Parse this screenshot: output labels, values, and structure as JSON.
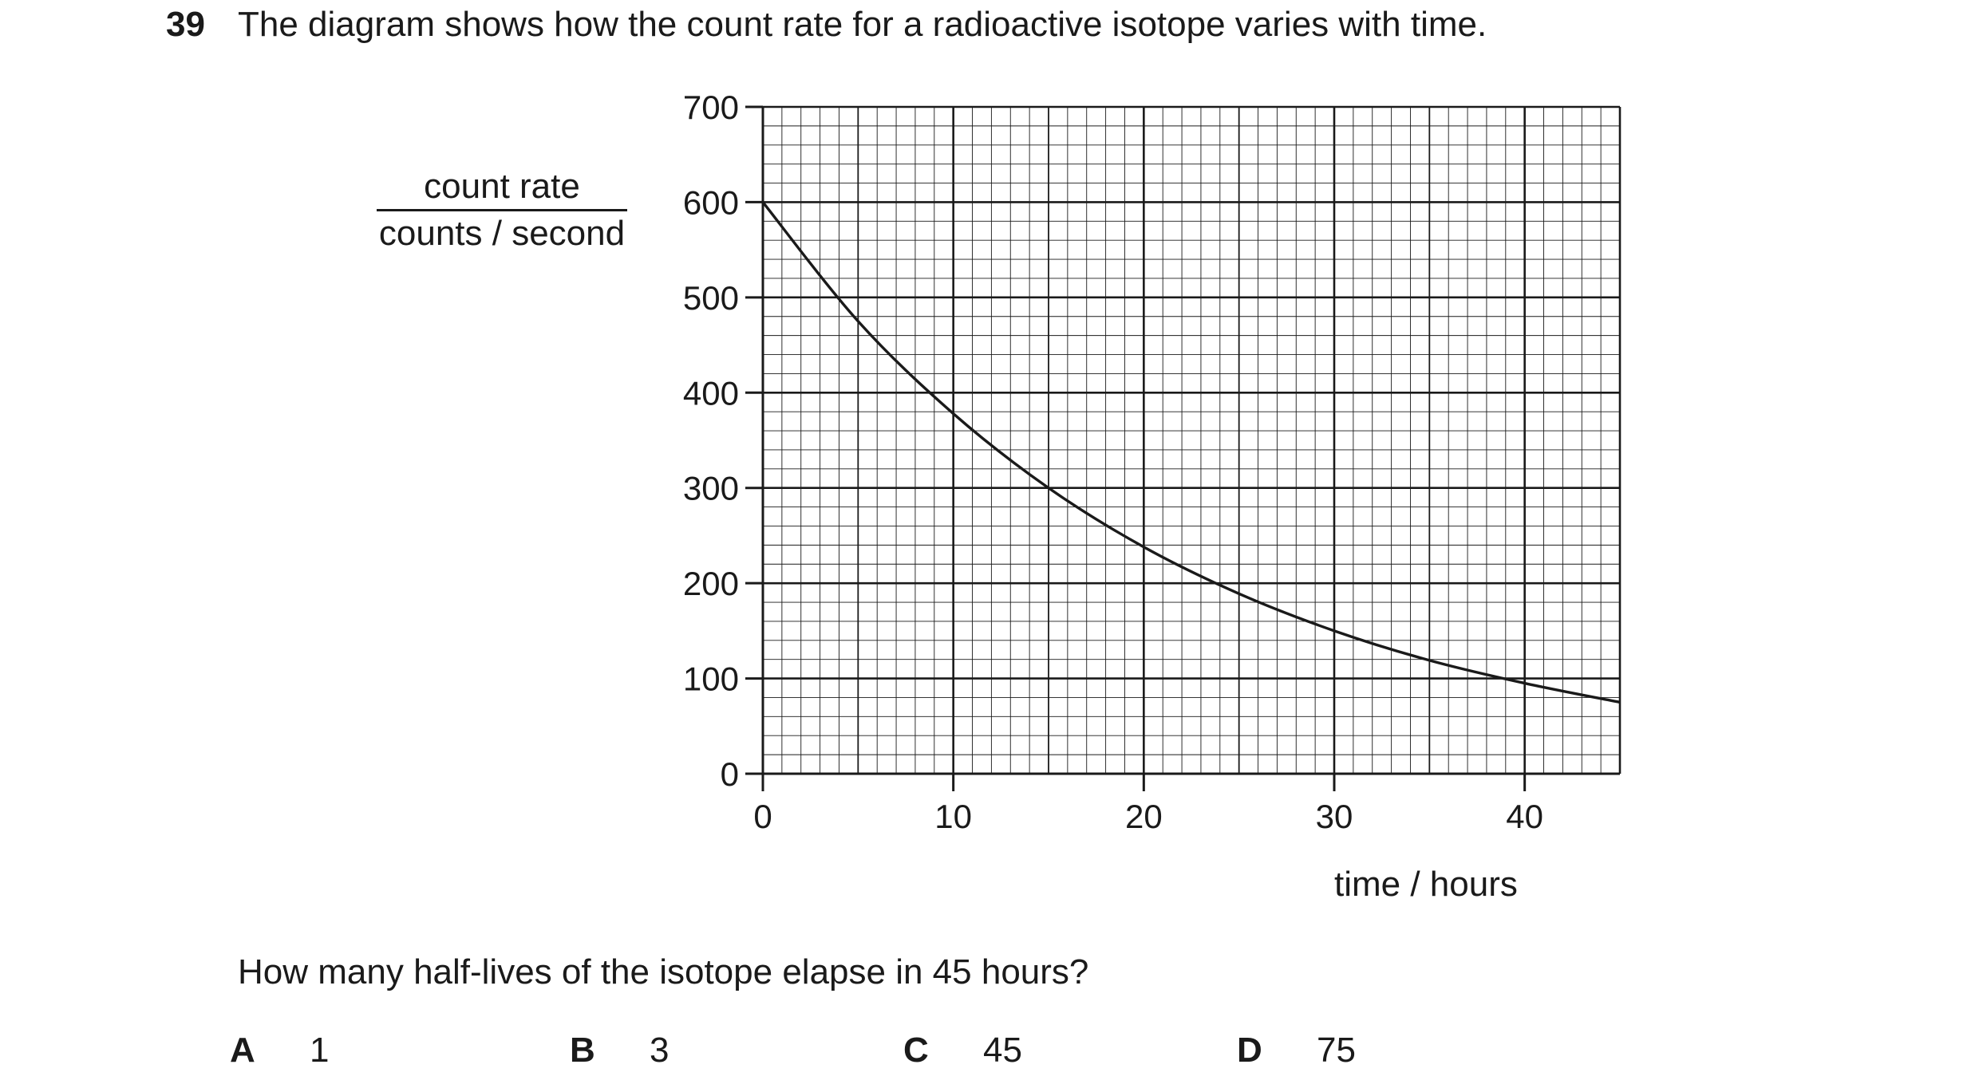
{
  "question": {
    "number": "39",
    "text": "The diagram shows how the count rate for a radioactive isotope varies with time.",
    "prompt": "How many half-lives of the isotope elapse in 45 hours?",
    "options": [
      {
        "letter": "A",
        "value": "1"
      },
      {
        "letter": "B",
        "value": "3"
      },
      {
        "letter": "C",
        "value": "45"
      },
      {
        "letter": "D",
        "value": "75"
      }
    ]
  },
  "chart_data": {
    "type": "line",
    "title": "",
    "xlabel": "time / hours",
    "ylabel_numerator": "count rate",
    "ylabel_denominator": "counts / second",
    "xlim": [
      0,
      45
    ],
    "ylim": [
      0,
      700
    ],
    "xticks": [
      0,
      10,
      20,
      30,
      40
    ],
    "yticks": [
      0,
      100,
      200,
      300,
      400,
      500,
      600,
      700
    ],
    "grid": true,
    "series": [
      {
        "x": [
          0,
          5,
          10,
          15,
          20,
          25,
          30,
          35,
          40,
          45
        ],
        "y": [
          600,
          475,
          378,
          300,
          238,
          189,
          150,
          119,
          95,
          75
        ]
      }
    ]
  }
}
